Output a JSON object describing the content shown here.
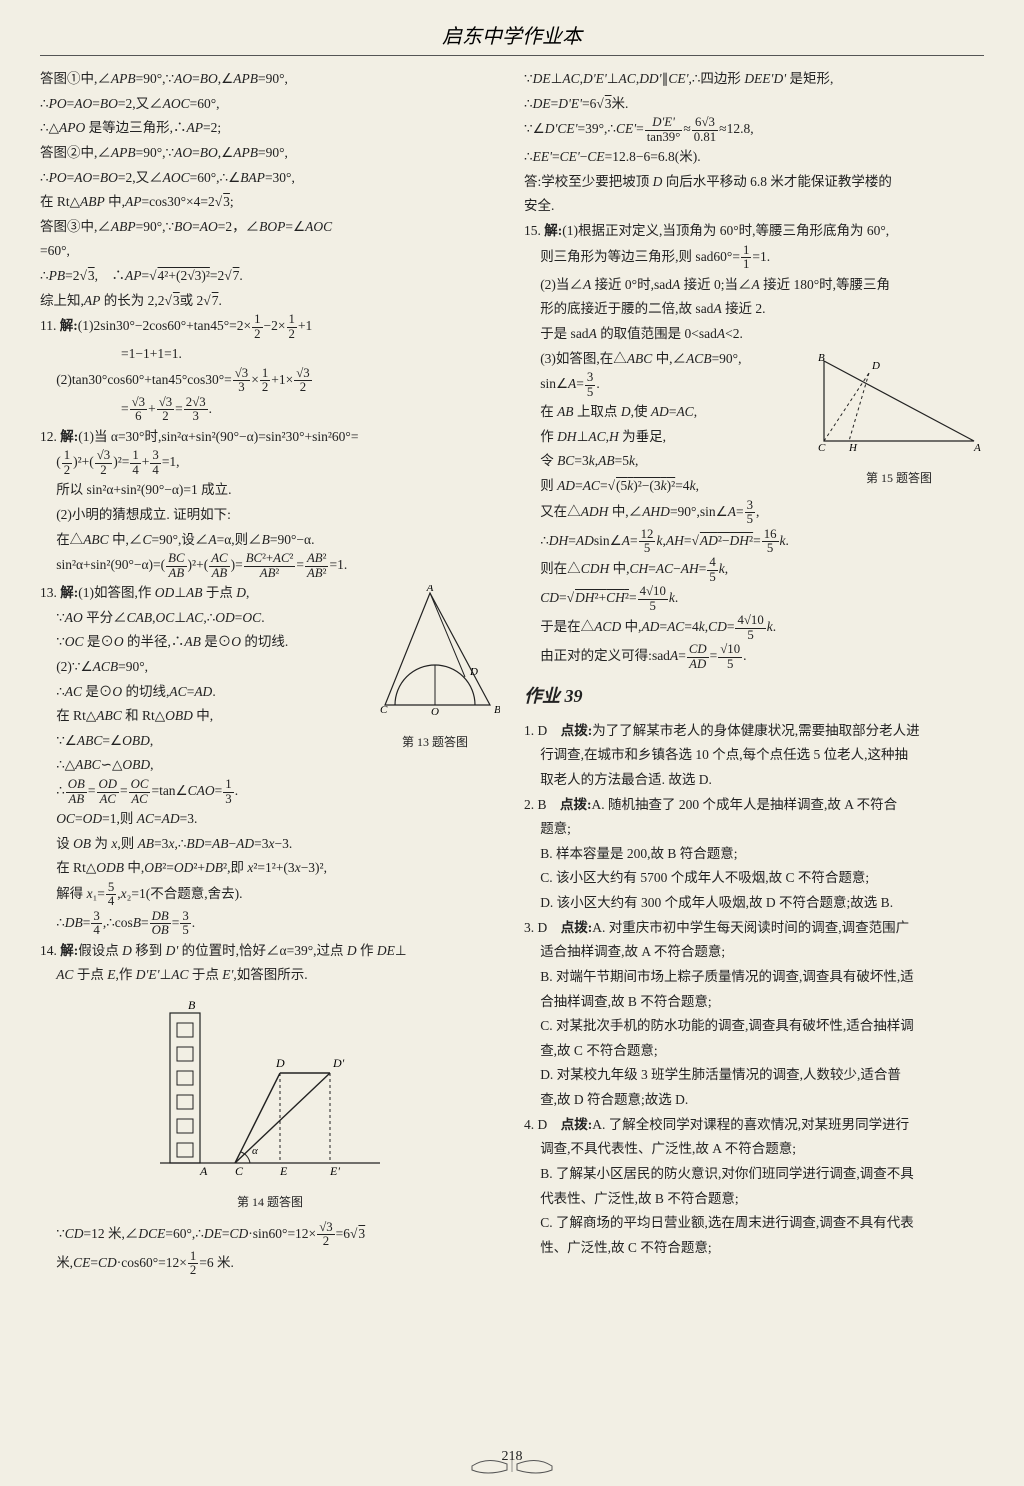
{
  "header": "启东中学作业本",
  "pageNumber": "218",
  "sectionTitle": "作业 39",
  "fig13Caption": "第 13 题答图",
  "fig14Caption": "第 14 题答图",
  "fig15Caption": "第 15 题答图",
  "left": [
    {
      "cls": "line",
      "html": "答图①中,∠<i>APB</i>=90°,∵<i>AO</i>=<i>BO</i>,∠<i>APB</i>=90°,"
    },
    {
      "cls": "line",
      "html": "∴<i>PO</i>=<i>AO</i>=<i>BO</i>=2,又∠<i>AOC</i>=60°,"
    },
    {
      "cls": "line",
      "html": "∴△<i>APO</i> 是等边三角形,∴<i>AP</i>=2;"
    },
    {
      "cls": "line",
      "html": "答图②中,∠<i>APB</i>=90°,∵<i>AO</i>=<i>BO</i>,∠<i>APB</i>=90°,"
    },
    {
      "cls": "line",
      "html": "∴<i>PO</i>=<i>AO</i>=<i>BO</i>=2,又∠<i>AOC</i>=60°,∴∠<i>BAP</i>=30°,"
    },
    {
      "cls": "line",
      "html": "在 Rt△<i>ABP</i> 中,<i>AP</i>=cos30°×4=2√<span class='sqrt'>3</span>;"
    },
    {
      "cls": "line",
      "html": "答图③中,∠<i>ABP</i>=90°,∵<i>BO</i>=<i>AO</i>=2，∠<i>BOP</i>=∠<i>AOC</i>"
    },
    {
      "cls": "line",
      "html": "=60°,"
    },
    {
      "cls": "line",
      "html": "∴<i>PB</i>=2√<span class='sqrt'>3</span>,　∴<i>AP</i>=√<span class='sqrt'>4²+(2√3)²</span>=2√<span class='sqrt'>7</span>."
    },
    {
      "cls": "line",
      "html": "综上知,<i>AP</i> 的长为 2,2√<span class='sqrt'>3</span>或 2√<span class='sqrt'>7</span>."
    },
    {
      "cls": "line",
      "html": "11. <b>解:</b>(1)2sin30°−2cos60°+tan45°=2×<span class='frac'><span class='num'>1</span><span class='den'>2</span></span>−2×<span class='frac'><span class='num'>1</span><span class='den'>2</span></span>+1"
    },
    {
      "cls": "line indent3",
      "html": "=1−1+1=1."
    },
    {
      "cls": "line indent1",
      "html": "(2)tan30°cos60°+tan45°cos30°=<span class='frac'><span class='num'>√3</span><span class='den'>3</span></span>×<span class='frac'><span class='num'>1</span><span class='den'>2</span></span>+1×<span class='frac'><span class='num'>√3</span><span class='den'>2</span></span>"
    },
    {
      "cls": "line indent3",
      "html": "=<span class='frac'><span class='num'>√3</span><span class='den'>6</span></span>+<span class='frac'><span class='num'>√3</span><span class='den'>2</span></span>=<span class='frac'><span class='num'>2√3</span><span class='den'>3</span></span>."
    },
    {
      "cls": "line",
      "html": "12. <b>解:</b>(1)当 α=30°时,sin²α+sin²(90°−α)=sin²30°+sin²60°="
    },
    {
      "cls": "line indent1",
      "html": "(<span class='frac'><span class='num'>1</span><span class='den'>2</span></span>)²+(<span class='frac'><span class='num'>√3</span><span class='den'>2</span></span>)²=<span class='frac'><span class='num'>1</span><span class='den'>4</span></span>+<span class='frac'><span class='num'>3</span><span class='den'>4</span></span>=1,"
    },
    {
      "cls": "line indent1",
      "html": "所以 sin²α+sin²(90°−α)=1 成立."
    },
    {
      "cls": "line indent1",
      "html": "(2)小明的猜想成立. 证明如下:"
    },
    {
      "cls": "line indent1",
      "html": "在△<i>ABC</i> 中,∠<i>C</i>=90°,设∠<i>A</i>=α,则∠<i>B</i>=90°−α."
    },
    {
      "cls": "line indent1",
      "html": "sin²α+sin²(90°−α)=(<span class='frac'><span class='num'><i>BC</i></span><span class='den'><i>AB</i></span></span>)²+(<span class='frac'><span class='num'><i>AC</i></span><span class='den'><i>AB</i></span></span>)=<span class='frac'><span class='num'><i>BC</i>²+<i>AC</i>²</span><span class='den'><i>AB</i>²</span></span>=<span class='frac'><span class='num'><i>AB</i>²</span><span class='den'><i>AB</i>²</span></span>=1."
    },
    {
      "cls": "fig13",
      "html": ""
    },
    {
      "cls": "line",
      "html": "13. <b>解:</b>(1)如答图,作 <i>OD</i>⊥<i>AB</i> 于点 <i>D</i>,"
    },
    {
      "cls": "line indent1",
      "html": "∵<i>AO</i> 平分∠<i>CAB</i>,<i>OC</i>⊥<i>AC</i>,∴<i>OD</i>=<i>OC</i>."
    },
    {
      "cls": "line indent1",
      "html": "∵<i>OC</i> 是⊙<i>O</i> 的半径,∴<i>AB</i> 是⊙<i>O</i> 的切线."
    },
    {
      "cls": "line indent1",
      "html": "(2)∵∠<i>ACB</i>=90°,"
    },
    {
      "cls": "line indent1",
      "html": "∴<i>AC</i> 是⊙<i>O</i> 的切线,<i>AC</i>=<i>AD</i>."
    },
    {
      "cls": "line indent1",
      "html": "在 Rt△<i>ABC</i> 和 Rt△<i>OBD</i> 中,"
    },
    {
      "cls": "line indent1",
      "html": "∵∠<i>ABC</i>=∠<i>OBD</i>,"
    },
    {
      "cls": "line indent1",
      "html": "∴△<i>ABC</i>∽△<i>OBD</i>,"
    },
    {
      "cls": "line indent1",
      "html": "∴<span class='frac'><span class='num'><i>OB</i></span><span class='den'><i>AB</i></span></span>=<span class='frac'><span class='num'><i>OD</i></span><span class='den'><i>AC</i></span></span>=<span class='frac'><span class='num'><i>OC</i></span><span class='den'><i>AC</i></span></span>=tan∠<i>CAO</i>=<span class='frac'><span class='num'>1</span><span class='den'>3</span></span>."
    },
    {
      "cls": "line indent1",
      "html": "<i>OC</i>=<i>OD</i>=1,则 <i>AC</i>=<i>AD</i>=3."
    },
    {
      "cls": "line indent1",
      "html": "设 <i>OB</i> 为 <i>x</i>,则 <i>AB</i>=3<i>x</i>,∴<i>BD</i>=<i>AB</i>−<i>AD</i>=3<i>x</i>−3."
    },
    {
      "cls": "line indent1",
      "html": "在 Rt△<i>ODB</i> 中,<i>OB</i>²=<i>OD</i>²+<i>DB</i>²,即 <i>x</i>²=1²+(3<i>x</i>−3)²,"
    },
    {
      "cls": "line indent1",
      "html": "解得 <i>x</i>₁=<span class='frac'><span class='num'>5</span><span class='den'>4</span></span>,<i>x</i>₂=1(不合题意,舍去)."
    },
    {
      "cls": "line indent1",
      "html": "∴<i>DB</i>=<span class='frac'><span class='num'>3</span><span class='den'>4</span></span>,∴cos<i>B</i>=<span class='frac'><span class='num'><i>DB</i></span><span class='den'><i>OB</i></span></span>=<span class='frac'><span class='num'>3</span><span class='den'>5</span></span>."
    },
    {
      "cls": "line",
      "html": "14. <b>解:</b>假设点 <i>D</i> 移到 <i>D'</i> 的位置时,恰好∠α=39°,过点 <i>D</i> 作 <i>DE</i>⊥"
    },
    {
      "cls": "line indent1",
      "html": "<i>AC</i> 于点 <i>E</i>,作 <i>D'E'</i>⊥<i>AC</i> 于点 <i>E'</i>,如答图所示."
    },
    {
      "cls": "fig14",
      "html": ""
    },
    {
      "cls": "line indent1",
      "html": "∵<i>CD</i>=12 米,∠<i>DCE</i>=60°,∴<i>DE</i>=<i>CD</i>·sin60°=12×<span class='frac'><span class='num'>√3</span><span class='den'>2</span></span>=6√<span class='sqrt'>3</span>"
    },
    {
      "cls": "line indent1",
      "html": "米,<i>CE</i>=<i>CD</i>·cos60°=12×<span class='frac'><span class='num'>1</span><span class='den'>2</span></span>=6 米."
    }
  ],
  "right": [
    {
      "cls": "line",
      "html": "∵<i>DE</i>⊥<i>AC</i>,<i>D'E'</i>⊥<i>AC</i>,<i>DD'</i>∥<i>CE'</i>,∴四边形 <i>DEE'D'</i> 是矩形,"
    },
    {
      "cls": "line",
      "html": "∴<i>DE</i>=<i>D'E'</i>=6√<span class='sqrt'>3</span>米."
    },
    {
      "cls": "line",
      "html": "∵∠<i>D'CE'</i>=39°,∴<i>CE'</i>=<span class='frac'><span class='num'><i>D'E'</i></span><span class='den'>tan39°</span></span>≈<span class='frac'><span class='num'>6√3</span><span class='den'>0.81</span></span>≈12.8,"
    },
    {
      "cls": "line",
      "html": "∴<i>EE'</i>=<i>CE'</i>−<i>CE</i>=12.8−6=6.8(米)."
    },
    {
      "cls": "line",
      "html": "答:学校至少要把坡顶 <i>D</i> 向后水平移动 6.8 米才能保证教学楼的"
    },
    {
      "cls": "line",
      "html": "安全."
    },
    {
      "cls": "line",
      "html": "15. <b>解:</b>(1)根据正对定义,当顶角为 60°时,等腰三角形底角为 60°,"
    },
    {
      "cls": "line indent1",
      "html": "则三角形为等边三角形,则 sad60°=<span class='frac'><span class='num'>1</span><span class='den'>1</span></span>=1."
    },
    {
      "cls": "line indent1",
      "html": "(2)当∠<i>A</i> 接近 0°时,sad<i>A</i> 接近 0;当∠<i>A</i> 接近 180°时,等腰三角"
    },
    {
      "cls": "line indent1",
      "html": "形的底接近于腰的二倍,故 sad<i>A</i> 接近 2."
    },
    {
      "cls": "line indent1",
      "html": "于是 sad<i>A</i> 的取值范围是 0&lt;sad<i>A</i>&lt;2."
    },
    {
      "cls": "fig15",
      "html": ""
    },
    {
      "cls": "line indent1",
      "html": "(3)如答图,在△<i>ABC</i> 中,∠<i>ACB</i>=90°,"
    },
    {
      "cls": "line indent1",
      "html": "sin∠<i>A</i>=<span class='frac'><span class='num'>3</span><span class='den'>5</span></span>."
    },
    {
      "cls": "line indent1",
      "html": "在 <i>AB</i> 上取点 <i>D</i>,使 <i>AD</i>=<i>AC</i>,"
    },
    {
      "cls": "line indent1",
      "html": "作 <i>DH</i>⊥<i>AC</i>,<i>H</i> 为垂足,"
    },
    {
      "cls": "line indent1",
      "html": "令 <i>BC</i>=3<i>k</i>,<i>AB</i>=5<i>k</i>,"
    },
    {
      "cls": "line indent1",
      "html": "则 <i>AD</i>=<i>AC</i>=√<span class='sqrt'>(5<i>k</i>)²−(3<i>k</i>)²</span>=4<i>k</i>,"
    },
    {
      "cls": "line indent1",
      "html": "又在△<i>ADH</i> 中,∠<i>AHD</i>=90°,sin∠<i>A</i>=<span class='frac'><span class='num'>3</span><span class='den'>5</span></span>,"
    },
    {
      "cls": "line indent1",
      "html": "∴<i>DH</i>=<i>AD</i>sin∠<i>A</i>=<span class='frac'><span class='num'>12</span><span class='den'>5</span></span><i>k</i>,<i>AH</i>=√<span class='sqrt'><i>AD</i>²−<i>DH</i>²</span>=<span class='frac'><span class='num'>16</span><span class='den'>5</span></span><i>k</i>."
    },
    {
      "cls": "line indent1",
      "html": "则在△<i>CDH</i> 中,<i>CH</i>=<i>AC</i>−<i>AH</i>=<span class='frac'><span class='num'>4</span><span class='den'>5</span></span><i>k</i>,"
    },
    {
      "cls": "line indent1",
      "html": "<i>CD</i>=√<span class='sqrt'><i>DH</i>²+<i>CH</i>²</span>=<span class='frac'><span class='num'>4√10</span><span class='den'>5</span></span><i>k</i>."
    },
    {
      "cls": "line indent1",
      "html": "于是在△<i>ACD</i> 中,<i>AD</i>=<i>AC</i>=4<i>k</i>,<i>CD</i>=<span class='frac'><span class='num'>4√10</span><span class='den'>5</span></span><i>k</i>."
    },
    {
      "cls": "line indent1",
      "html": "由正对的定义可得:sad<i>A</i>=<span class='frac'><span class='num'><i>CD</i></span><span class='den'><i>AD</i></span></span>=<span class='frac'><span class='num'>√10</span><span class='den'>5</span></span>."
    },
    {
      "cls": "section",
      "html": ""
    },
    {
      "cls": "line",
      "html": "1. D　<b>点拨:</b>为了了解某市老人的身体健康状况,需要抽取部分老人进"
    },
    {
      "cls": "line indent1",
      "html": "行调查,在城市和乡镇各选 10 个点,每个点任选 5 位老人,这种抽"
    },
    {
      "cls": "line indent1",
      "html": "取老人的方法最合适. 故选 D."
    },
    {
      "cls": "line",
      "html": "2. B　<b>点拨:</b>A. 随机抽查了 200 个成年人是抽样调查,故 A 不符合"
    },
    {
      "cls": "line indent1",
      "html": "题意;"
    },
    {
      "cls": "line indent1",
      "html": "B. 样本容量是 200,故 B 符合题意;"
    },
    {
      "cls": "line indent1",
      "html": "C. 该小区大约有 5700 个成年人不吸烟,故 C 不符合题意;"
    },
    {
      "cls": "line indent1",
      "html": "D. 该小区大约有 300 个成年人吸烟,故 D 不符合题意;故选 B."
    },
    {
      "cls": "line",
      "html": "3. D　<b>点拨:</b>A. 对重庆市初中学生每天阅读时间的调查,调查范围广"
    },
    {
      "cls": "line indent1",
      "html": "适合抽样调查,故 A 不符合题意;"
    },
    {
      "cls": "line indent1",
      "html": "B. 对端午节期间市场上粽子质量情况的调查,调查具有破坏性,适"
    },
    {
      "cls": "line indent1",
      "html": "合抽样调查,故 B 不符合题意;"
    },
    {
      "cls": "line indent1",
      "html": "C. 对某批次手机的防水功能的调查,调查具有破坏性,适合抽样调"
    },
    {
      "cls": "line indent1",
      "html": "查,故 C 不符合题意;"
    },
    {
      "cls": "line indent1",
      "html": "D. 对某校九年级 3 班学生肺活量情况的调查,人数较少,适合普"
    },
    {
      "cls": "line indent1",
      "html": "查,故 D 符合题意;故选 D."
    },
    {
      "cls": "line",
      "html": "4. D　<b>点拨:</b>A. 了解全校同学对课程的喜欢情况,对某班男同学进行"
    },
    {
      "cls": "line indent1",
      "html": "调查,不具代表性、广泛性,故 A 不符合题意;"
    },
    {
      "cls": "line indent1",
      "html": "B. 了解某小区居民的防火意识,对你们班同学进行调查,调查不具"
    },
    {
      "cls": "line indent1",
      "html": "代表性、广泛性,故 B 不符合题意;"
    },
    {
      "cls": "line indent1",
      "html": "C. 了解商场的平均日营业额,选在周末进行调查,调查不具有代表"
    },
    {
      "cls": "line indent1",
      "html": "性、广泛性,故 C 不符合题意;"
    }
  ]
}
